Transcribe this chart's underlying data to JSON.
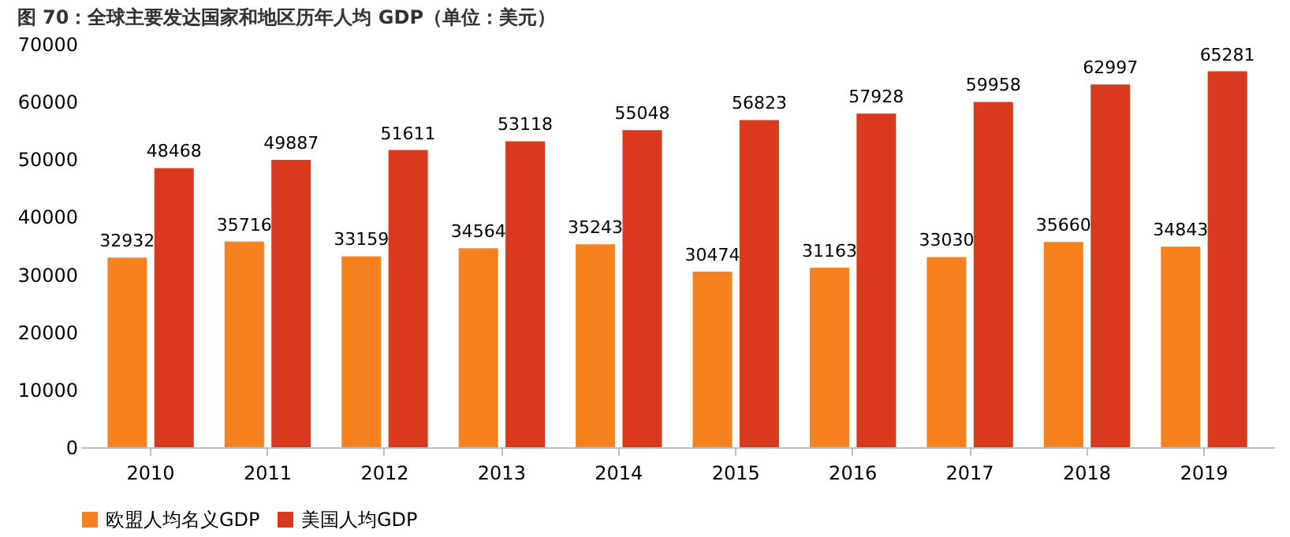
{
  "chart_data": {
    "type": "bar",
    "title": "图 70：全球主要发达国家和地区历年人均 GDP（单位：美元）",
    "categories": [
      "2010",
      "2011",
      "2012",
      "2013",
      "2014",
      "2015",
      "2016",
      "2017",
      "2018",
      "2019"
    ],
    "series": [
      {
        "name": "欧盟人均名义GDP",
        "color": "#f5821f",
        "values": [
          32932,
          35716,
          33159,
          34564,
          35243,
          30474,
          31163,
          33030,
          35660,
          34843
        ]
      },
      {
        "name": "美国人均GDP",
        "color": "#d9391c",
        "values": [
          48468,
          49887,
          51611,
          53118,
          55048,
          56823,
          57928,
          59958,
          62997,
          65281
        ]
      }
    ],
    "ylim": [
      0,
      70000
    ],
    "yticks": [
      0,
      10000,
      20000,
      30000,
      40000,
      50000,
      60000,
      70000
    ],
    "data_labels": true,
    "legend": "bottom",
    "grid": false
  }
}
